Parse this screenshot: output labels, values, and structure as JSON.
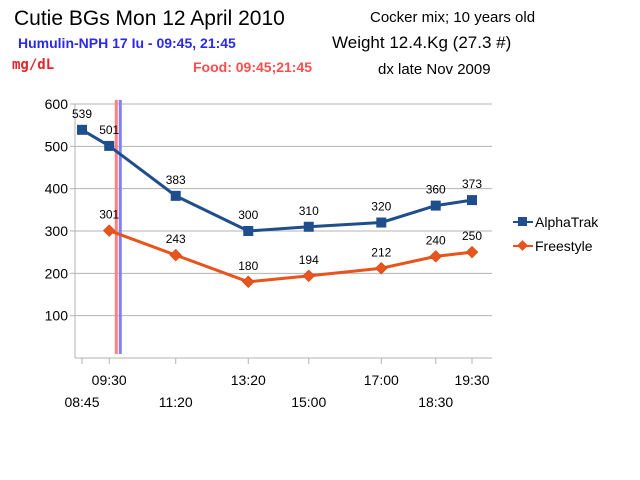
{
  "header": {
    "title": "Cutie BGs  Mon 12 April  2010",
    "subtitle": "Cocker mix; 10 years old",
    "insulin": "Humulin-NPH 17 Iu - 09:45, 21:45",
    "weight": "Weight 12.4.Kg (27.3 #)",
    "unit": "mg/dL",
    "food": "Food: 09:45;21:45",
    "dx": "dx late Nov 2009"
  },
  "chart_data": {
    "type": "line",
    "title": "",
    "xlabel": "",
    "ylabel": "mg/dL",
    "ylim": [
      0,
      600
    ],
    "yticks": [
      100,
      200,
      300,
      400,
      500,
      600
    ],
    "grid": "horizontal",
    "legend_position": "right",
    "x_categories": [
      "08:45",
      "09:30",
      "11:20",
      "13:20",
      "15:00",
      "17:00",
      "18:30",
      "19:30"
    ],
    "x_labels_row1": [
      {
        "cat": "09:30",
        "text": "09:30"
      },
      {
        "cat": "13:20",
        "text": "13:20"
      },
      {
        "cat": "17:00",
        "text": "17:00"
      },
      {
        "cat": "19:30",
        "text": "19:30"
      }
    ],
    "x_labels_row2": [
      {
        "cat": "08:45",
        "text": "08:45"
      },
      {
        "cat": "11:20",
        "text": "11:20"
      },
      {
        "cat": "15:00",
        "text": "15:00"
      },
      {
        "cat": "18:30",
        "text": "18:30"
      }
    ],
    "series": [
      {
        "name": "AlphaTrak",
        "color": "#1f4e8c",
        "marker": "square",
        "points": [
          [
            "08:45",
            539
          ],
          [
            "09:30",
            501
          ],
          [
            "11:20",
            383
          ],
          [
            "13:20",
            300
          ],
          [
            "15:00",
            310
          ],
          [
            "17:00",
            320
          ],
          [
            "18:30",
            360
          ],
          [
            "19:30",
            373
          ]
        ]
      },
      {
        "name": "Freestyle",
        "color": "#e8541e",
        "marker": "diamond",
        "points": [
          [
            "09:30",
            301
          ],
          [
            "11:20",
            243
          ],
          [
            "13:20",
            180
          ],
          [
            "15:00",
            194
          ],
          [
            "17:00",
            212
          ],
          [
            "18:30",
            240
          ],
          [
            "19:30",
            250
          ]
        ]
      }
    ],
    "vertical_markers": [
      {
        "time": "09:45",
        "color": "#ff8080"
      },
      {
        "time": "09:45",
        "color": "#8080ff"
      }
    ]
  }
}
